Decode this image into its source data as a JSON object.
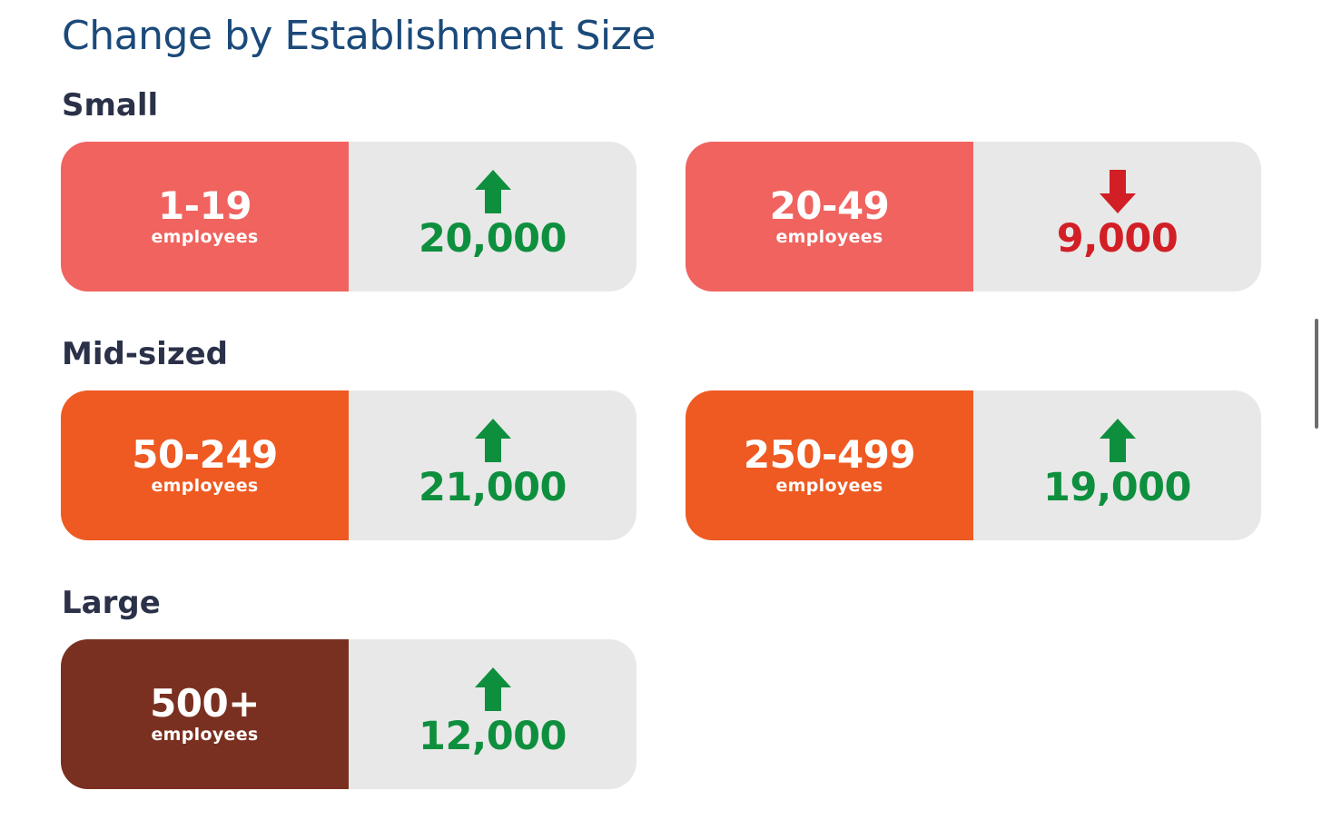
{
  "title": "Change by Establishment Size",
  "colors": {
    "small": "#f0635f",
    "mid": "#ef5a22",
    "large": "#7a3020",
    "increase": "#0e8f3e",
    "decrease": "#d21f26",
    "panel": "#e8e8e8"
  },
  "sections": {
    "small": "Small",
    "mid": "Mid-sized",
    "large": "Large"
  },
  "cards": [
    {
      "range": "1-19",
      "unit": "employees",
      "value_label": "20,000",
      "direction": "up",
      "group": "small"
    },
    {
      "range": "20-49",
      "unit": "employees",
      "value_label": "9,000",
      "direction": "down",
      "group": "small"
    },
    {
      "range": "50-249",
      "unit": "employees",
      "value_label": "21,000",
      "direction": "up",
      "group": "mid"
    },
    {
      "range": "250-499",
      "unit": "employees",
      "value_label": "19,000",
      "direction": "up",
      "group": "mid"
    },
    {
      "range": "500+",
      "unit": "employees",
      "value_label": "12,000",
      "direction": "up",
      "group": "large"
    }
  ],
  "chart_data": {
    "type": "table",
    "title": "Change by Establishment Size",
    "categories": [
      "1-19",
      "20-49",
      "50-249",
      "250-499",
      "500+"
    ],
    "groups": [
      "Small",
      "Small",
      "Mid-sized",
      "Mid-sized",
      "Large"
    ],
    "values": [
      20000,
      -9000,
      21000,
      19000,
      12000
    ]
  }
}
